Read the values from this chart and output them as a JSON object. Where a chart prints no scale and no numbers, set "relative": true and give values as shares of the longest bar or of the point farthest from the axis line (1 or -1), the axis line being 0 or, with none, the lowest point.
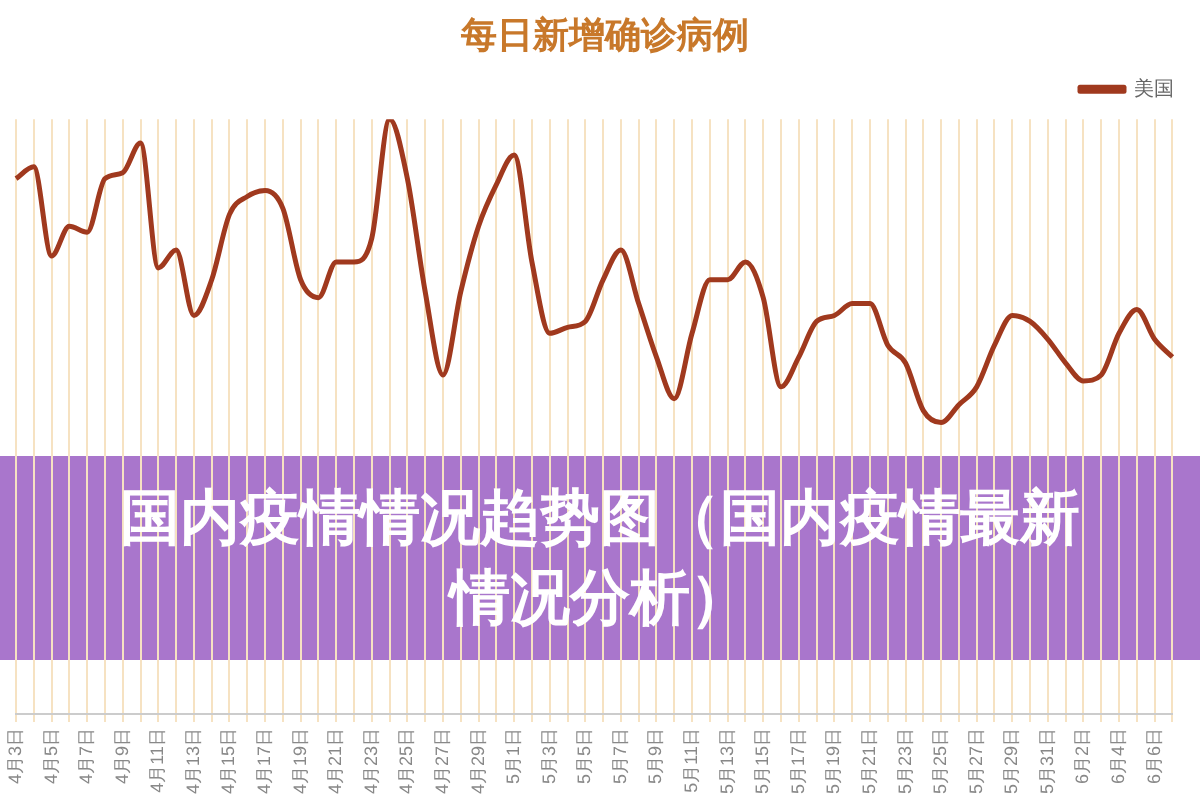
{
  "chart_data": {
    "type": "line",
    "title": "每日新增确诊病例",
    "categories": [
      "4月3日",
      null,
      "4月5日",
      null,
      "4月7日",
      null,
      "4月9日",
      null,
      "4月11日",
      null,
      "4月13日",
      null,
      "4月15日",
      null,
      "4月17日",
      null,
      "4月19日",
      null,
      "4月21日",
      null,
      "4月23日",
      null,
      "4月25日",
      null,
      "4月27日",
      null,
      "4月29日",
      null,
      "5月1日",
      null,
      "5月3日",
      null,
      "5月5日",
      null,
      "5月7日",
      null,
      "5月9日",
      null,
      "5月11日",
      null,
      "5月13日",
      null,
      "5月15日",
      null,
      "5月17日",
      null,
      "5月19日",
      null,
      "5月21日",
      null,
      "5月23日",
      null,
      "5月25日",
      null,
      "5月27日",
      null,
      "5月29日",
      null,
      "5月31日",
      null,
      "6月2日",
      null,
      "6月4日",
      null,
      "6月6日",
      null
    ],
    "series": [
      {
        "name": "美国",
        "color": "#a0391e",
        "values": [
          0.9,
          0.92,
          0.77,
          0.82,
          0.81,
          0.9,
          0.91,
          0.96,
          0.75,
          0.78,
          0.67,
          0.73,
          0.84,
          0.87,
          0.88,
          0.85,
          0.73,
          0.7,
          0.76,
          0.76,
          0.8,
          1,
          0.9,
          0.71,
          0.57,
          0.71,
          0.82,
          0.89,
          0.94,
          0.76,
          0.64,
          0.65,
          0.66,
          0.73,
          0.78,
          0.69,
          0.6,
          0.53,
          0.64,
          0.73,
          0.73,
          0.76,
          0.7,
          0.55,
          0.6,
          0.66,
          0.67,
          0.69,
          0.69,
          0.62,
          0.59,
          0.51,
          0.49,
          0.52,
          0.55,
          0.62,
          0.67,
          0.66,
          0.63,
          0.59,
          0.56,
          0.57,
          0.64,
          0.68,
          0.63,
          0.6
        ]
      }
    ],
    "relative": true,
    "grid": "x",
    "legend": "top right",
    "annotations": [
      "国内疫情情况趋势图（国内疫情最新情况分析）"
    ]
  }
}
